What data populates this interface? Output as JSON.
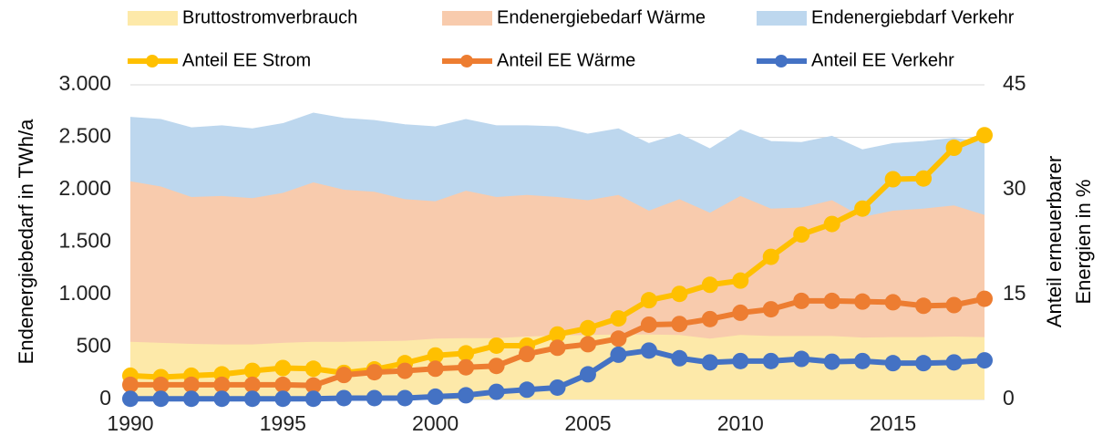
{
  "chart_data": {
    "type": "area-line",
    "ylabel": "Endenergiebedarf in TWh/a",
    "y2label": [
      "Anteil erneuerbarer",
      "Energien in %"
    ],
    "x": [
      1990,
      1991,
      1992,
      1993,
      1994,
      1995,
      1996,
      1997,
      1998,
      1999,
      2000,
      2001,
      2002,
      2003,
      2004,
      2005,
      2006,
      2007,
      2008,
      2009,
      2010,
      2011,
      2012,
      2013,
      2014,
      2015,
      2016,
      2017,
      2018
    ],
    "xlim": [
      1990,
      2018
    ],
    "xticks": [
      1990,
      1995,
      2000,
      2005,
      2010,
      2015
    ],
    "ylim": [
      0,
      3000
    ],
    "yticks": [
      0,
      500,
      {
        "value": 1000,
        "label": "1.000"
      },
      {
        "value": 1500,
        "label": "1.500"
      },
      {
        "value": 2000,
        "label": "2.000"
      },
      {
        "value": 2500,
        "label": "2.500"
      },
      {
        "value": 3000,
        "label": "3.000"
      }
    ],
    "y2lim": [
      0,
      45
    ],
    "y2ticks": [
      0,
      15,
      30,
      45
    ],
    "grid": true,
    "series": [
      {
        "name": "Bruttostromverbrauch",
        "type": "area",
        "color": "#fde9a9",
        "values": [
          550,
          540,
          530,
          525,
          525,
          540,
          550,
          550,
          555,
          560,
          580,
          585,
          585,
          600,
          610,
          615,
          620,
          620,
          615,
          580,
          615,
          605,
          605,
          605,
          590,
          595,
          595,
          600,
          595
        ]
      },
      {
        "name": "Endenergiebedarf Wärme",
        "type": "area",
        "color": "#f8cbad",
        "values": [
          1530,
          1490,
          1400,
          1415,
          1395,
          1430,
          1520,
          1450,
          1425,
          1350,
          1310,
          1405,
          1345,
          1350,
          1320,
          1285,
          1330,
          1180,
          1295,
          1200,
          1325,
          1215,
          1225,
          1295,
          1150,
          1205,
          1225,
          1250,
          1165
        ]
      },
      {
        "name": "Endenergiebdarf Verkehr",
        "type": "area",
        "color": "#bdd7ee",
        "values": [
          610,
          640,
          660,
          670,
          660,
          660,
          660,
          680,
          680,
          710,
          710,
          680,
          680,
          660,
          670,
          630,
          630,
          640,
          620,
          610,
          630,
          640,
          620,
          610,
          640,
          640,
          640,
          640,
          690
        ]
      },
      {
        "name": "Anteil EE Strom",
        "type": "line",
        "axis": "y2",
        "color": "#ffc000",
        "values": [
          3.4,
          3.2,
          3.4,
          3.6,
          4.1,
          4.5,
          4.4,
          3.8,
          4.3,
          5.2,
          6.3,
          6.6,
          7.7,
          7.7,
          9.3,
          10.2,
          11.6,
          14.2,
          15.1,
          16.4,
          17.0,
          20.4,
          23.6,
          25.1,
          27.3,
          31.5,
          31.6,
          36.0,
          37.8
        ]
      },
      {
        "name": "Anteil EE Wärme",
        "type": "line",
        "axis": "y2",
        "color": "#ed7d31",
        "values": [
          2.1,
          2.1,
          2.1,
          2.1,
          2.1,
          2.1,
          2.0,
          3.5,
          3.9,
          4.1,
          4.4,
          4.6,
          4.8,
          6.5,
          7.4,
          7.9,
          8.7,
          10.7,
          10.8,
          11.5,
          12.4,
          12.9,
          14.1,
          14.1,
          14.0,
          13.9,
          13.4,
          13.5,
          14.4
        ]
      },
      {
        "name": "Anteil EE Verkehr",
        "type": "line",
        "axis": "y2",
        "color": "#4472c4",
        "values": [
          0.1,
          0.1,
          0.1,
          0.1,
          0.1,
          0.1,
          0.1,
          0.2,
          0.2,
          0.2,
          0.4,
          0.6,
          1.1,
          1.4,
          1.7,
          3.6,
          6.4,
          7.0,
          5.9,
          5.3,
          5.5,
          5.5,
          5.8,
          5.4,
          5.5,
          5.2,
          5.2,
          5.3,
          5.6
        ]
      }
    ]
  }
}
